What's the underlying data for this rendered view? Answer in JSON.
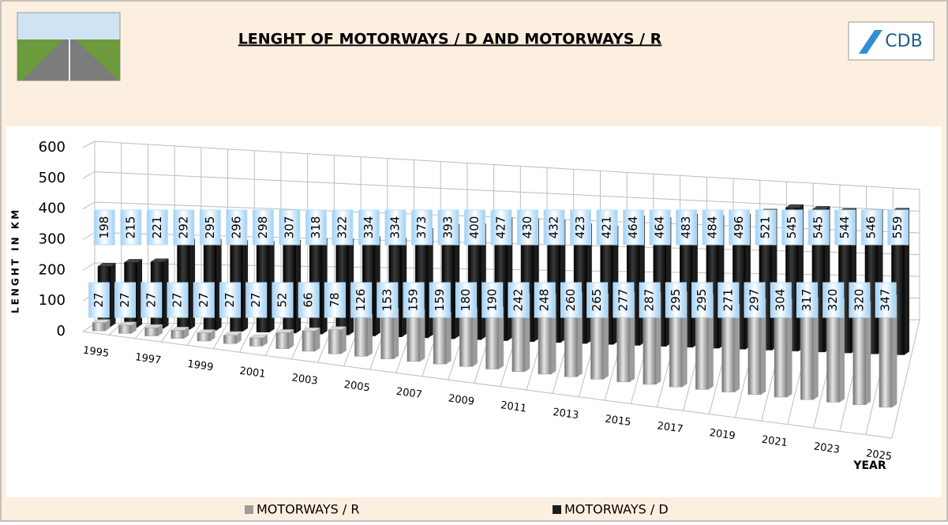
{
  "header": {
    "logo": "CDB"
  },
  "chart_data": {
    "type": "bar",
    "title": "LENGHT OF MOTORWAYS / D AND MOTORWAYS / R",
    "y_label": "LENGHT IN KM",
    "x_label": "YEAR",
    "categories": [
      "1995",
      null,
      "1997",
      null,
      "1999",
      null,
      "2001",
      null,
      "2003",
      null,
      "2005",
      null,
      "2007",
      null,
      "2009",
      null,
      "2011",
      null,
      "2013",
      null,
      "2015",
      null,
      "2017",
      null,
      "2019",
      null,
      "2021",
      null,
      "2023",
      null,
      "2025"
    ],
    "series": [
      {
        "name": "MOTORWAYS / R",
        "color": "#9c9c9c",
        "values": [
          27,
          27,
          27,
          27,
          27,
          27,
          27,
          52,
          66,
          78,
          126,
          153,
          159,
          159,
          180,
          190,
          242,
          248,
          260,
          265,
          277,
          287,
          295,
          295,
          271,
          297,
          304,
          317,
          320,
          320,
          347
        ]
      },
      {
        "name": "MOTORWAYS / D",
        "color": "#1c1c1c",
        "values": [
          198,
          215,
          221,
          292,
          295,
          296,
          298,
          307,
          318,
          322,
          334,
          334,
          373,
          393,
          400,
          427,
          430,
          432,
          423,
          421,
          464,
          464,
          483,
          484,
          496,
          521,
          545,
          545,
          544,
          546,
          559
        ]
      }
    ],
    "ylim": [
      0,
      600
    ],
    "yticks": [
      0,
      100,
      200,
      300,
      400,
      500,
      600
    ],
    "grid": true,
    "legend": "bottom"
  }
}
